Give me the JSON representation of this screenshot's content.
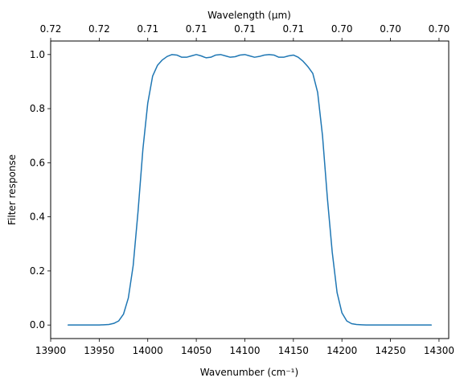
{
  "chart_data": {
    "type": "line",
    "title": "",
    "xlabel": "Wavenumber (cm⁻¹)",
    "ylabel": "Filter response",
    "top_xlabel": "Wavelength (μm)",
    "xlim": [
      13900,
      14310
    ],
    "ylim": [
      -0.05,
      1.05
    ],
    "xticks": [
      13900,
      13950,
      14000,
      14050,
      14100,
      14150,
      14200,
      14250,
      14300
    ],
    "xtick_labels": [
      "13900",
      "13950",
      "14000",
      "14050",
      "14100",
      "14150",
      "14200",
      "14250",
      "14300"
    ],
    "yticks": [
      0.0,
      0.2,
      0.4,
      0.6,
      0.8,
      1.0
    ],
    "ytick_labels": [
      "0.0",
      "0.2",
      "0.4",
      "0.6",
      "0.8",
      "1.0"
    ],
    "top_ticks": [
      13900,
      13950,
      14000,
      14050,
      14100,
      14150,
      14200,
      14250,
      14300
    ],
    "top_tick_labels": [
      "0.72",
      "0.72",
      "0.71",
      "0.71",
      "0.71",
      "0.71",
      "0.70",
      "0.70",
      "0.70"
    ],
    "grid": false,
    "legend": "none",
    "series": [
      {
        "color": "#1f77b4",
        "x": [
          13918,
          13930,
          13940,
          13950,
          13960,
          13965,
          13970,
          13975,
          13980,
          13985,
          13990,
          13995,
          14000,
          14005,
          14010,
          14015,
          14020,
          14025,
          14030,
          14035,
          14040,
          14045,
          14050,
          14055,
          14060,
          14065,
          14070,
          14075,
          14080,
          14085,
          14090,
          14095,
          14100,
          14105,
          14110,
          14115,
          14120,
          14125,
          14130,
          14135,
          14140,
          14145,
          14150,
          14155,
          14160,
          14165,
          14170,
          14175,
          14180,
          14185,
          14190,
          14195,
          14200,
          14205,
          14210,
          14215,
          14220,
          14225,
          14230,
          14235,
          14240,
          14250,
          14260,
          14270,
          14280,
          14292
        ],
        "y": [
          0.0,
          0.0,
          0.0,
          0.0,
          0.002,
          0.006,
          0.015,
          0.04,
          0.1,
          0.22,
          0.42,
          0.65,
          0.82,
          0.92,
          0.96,
          0.98,
          0.993,
          1.0,
          0.998,
          0.99,
          0.99,
          0.995,
          1.0,
          0.995,
          0.988,
          0.99,
          0.998,
          1.0,
          0.995,
          0.99,
          0.992,
          0.998,
          1.0,
          0.995,
          0.99,
          0.993,
          0.998,
          1.0,
          0.998,
          0.99,
          0.99,
          0.995,
          0.998,
          0.99,
          0.975,
          0.955,
          0.93,
          0.86,
          0.7,
          0.47,
          0.27,
          0.12,
          0.045,
          0.015,
          0.005,
          0.002,
          0.001,
          0.0,
          0.0,
          0.0,
          0.0,
          0.0,
          0.0,
          0.0,
          0.0,
          0.0
        ]
      }
    ]
  }
}
